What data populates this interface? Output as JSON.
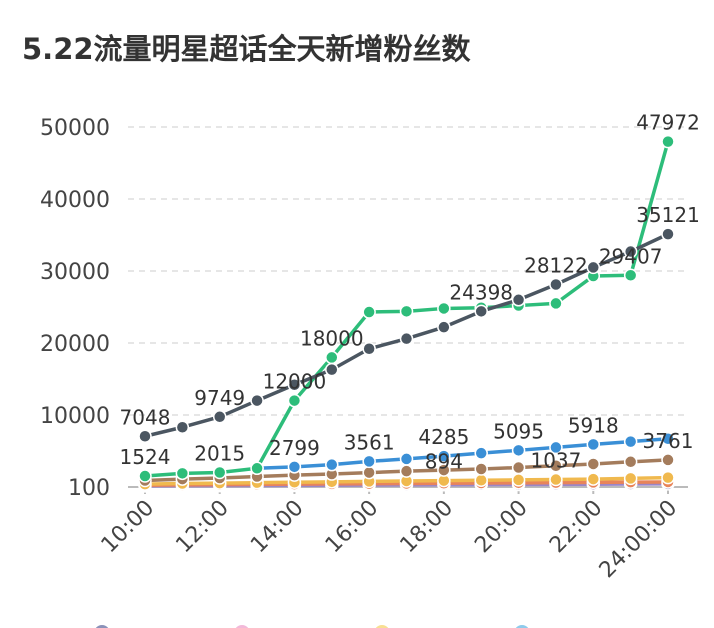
{
  "chart_data": {
    "type": "line",
    "title": "5.22流量明星超话全天新增粉丝数",
    "categories": [
      "10:00",
      "11:00",
      "12:00",
      "13:00",
      "14:00",
      "15:00",
      "16:00",
      "17:00",
      "18:00",
      "19:00",
      "20:00",
      "21:00",
      "22:00",
      "23:00",
      "24:00:00"
    ],
    "x_tick_labels": [
      "10:00",
      "12:00",
      "14:00",
      "16:00",
      "18:00",
      "20:00",
      "22:00",
      "24:00:00"
    ],
    "y_tick_labels": [
      "100",
      "10000",
      "20000",
      "30000",
      "40000",
      "50000"
    ],
    "ylim": [
      0,
      50000
    ],
    "grid": true,
    "legend": "bottom",
    "series": [
      {
        "color": "#4b5661",
        "values": [
          7048,
          8300,
          9749,
          12000,
          14200,
          16300,
          19200,
          20600,
          22200,
          24398,
          26000,
          28122,
          30500,
          32700,
          35121
        ],
        "labels": {
          "0": "7048",
          "2": "9749",
          "9": "24398",
          "11": "28122",
          "14": "35121"
        }
      },
      {
        "color": "#2dbd7a",
        "values": [
          1524,
          1900,
          2015,
          2600,
          12000,
          18000,
          24300,
          24400,
          24800,
          24900,
          25200,
          25500,
          29300,
          29407,
          47972
        ],
        "labels": {
          "0": "1524",
          "2": "2015",
          "4": "12000",
          "5": "18000",
          "13": "29407",
          "14": "47972"
        }
      },
      {
        "color": "#3a8fd6",
        "values": [
          null,
          null,
          null,
          2600,
          2799,
          3100,
          3561,
          3900,
          4285,
          4700,
          5095,
          5500,
          5918,
          6300,
          6700
        ],
        "labels": {
          "4": "2799",
          "6": "3561",
          "8": "4285",
          "10": "5095",
          "12": "5918"
        }
      },
      {
        "color": "#a47c5c",
        "values": [
          900,
          1100,
          1250,
          1450,
          1650,
          1800,
          2000,
          2200,
          2350,
          2500,
          2700,
          2950,
          3200,
          3500,
          3761
        ],
        "labels": {
          "14": "3761"
        }
      },
      {
        "color": "#f0b94e",
        "values": [
          400,
          480,
          540,
          600,
          660,
          720,
          780,
          840,
          894,
          940,
          990,
          1037,
          1100,
          1200,
          1300
        ],
        "labels": {
          "8": "894",
          "11": "1037"
        }
      },
      {
        "color": "#e8845a",
        "values": [
          250,
          290,
          330,
          370,
          400,
          430,
          460,
          490,
          520,
          550,
          580,
          610,
          640,
          670,
          700
        ],
        "labels": {}
      },
      {
        "color": "#9a86c8",
        "values": [
          150,
          170,
          190,
          210,
          230,
          250,
          270,
          290,
          310,
          330,
          350,
          370,
          390,
          410,
          430
        ],
        "labels": {}
      }
    ],
    "extra_labels": {
      "17": "20600"
    },
    "legend_colors": [
      "#3e4a8a",
      "#e98ac0",
      "#f3c94a",
      "#45a8e0"
    ]
  }
}
